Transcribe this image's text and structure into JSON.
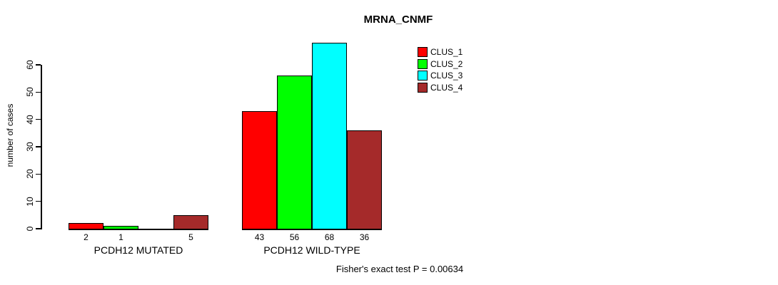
{
  "chart_data": {
    "type": "bar",
    "title": "MRNA_CNMF",
    "xlabel": "",
    "ylabel": "number of cases",
    "ylim": [
      0,
      60
    ],
    "yticks": [
      0,
      10,
      20,
      30,
      40,
      50,
      60
    ],
    "grid": false,
    "legend_position": "top-right",
    "series": [
      "CLUS_1",
      "CLUS_2",
      "CLUS_3",
      "CLUS_4"
    ],
    "series_colors": [
      "#ff0000",
      "#00ff00",
      "#00ffff",
      "#a52a2a"
    ],
    "groups": [
      {
        "label": "PCDH12 MUTATED",
        "values": [
          2,
          1,
          0,
          5
        ],
        "bar_labels": [
          "2",
          "1",
          "",
          "5"
        ]
      },
      {
        "label": "PCDH12 WILD-TYPE",
        "values": [
          43,
          56,
          68,
          36
        ],
        "bar_labels": [
          "43",
          "56",
          "68",
          "36"
        ]
      }
    ],
    "legend": [
      {
        "label": "CLUS_1",
        "color": "#ff0000"
      },
      {
        "label": "CLUS_2",
        "color": "#00ff00"
      },
      {
        "label": "CLUS_3",
        "color": "#00ffff"
      },
      {
        "label": "CLUS_4",
        "color": "#a52a2a"
      }
    ],
    "footnote": "Fisher's exact test P = 0.00634"
  }
}
